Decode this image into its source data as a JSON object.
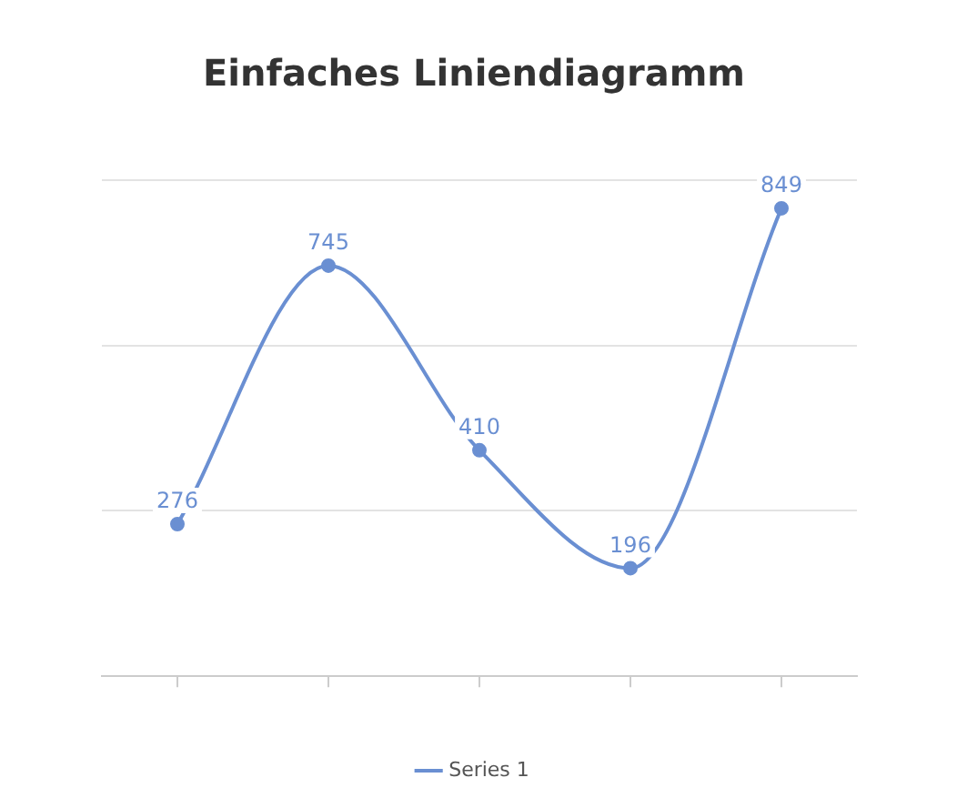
{
  "chart_data": {
    "type": "line",
    "title": "Einfaches Liniendiagramm",
    "categories": [
      null,
      null,
      null,
      null,
      null
    ],
    "series": [
      {
        "name": "Series 1",
        "color": "#6a8fd2",
        "values": [
          276,
          745,
          410,
          196,
          849
        ]
      }
    ],
    "ylim": [
      0,
      900
    ],
    "yticks": [
      {
        "value": 0,
        "label": null
      },
      {
        "value": 300,
        "label": null
      },
      {
        "value": 600,
        "label": null
      },
      {
        "value": 900,
        "label": null
      }
    ],
    "grid": "y",
    "legend": "bottom",
    "marker": "circle",
    "data_labels": true
  }
}
